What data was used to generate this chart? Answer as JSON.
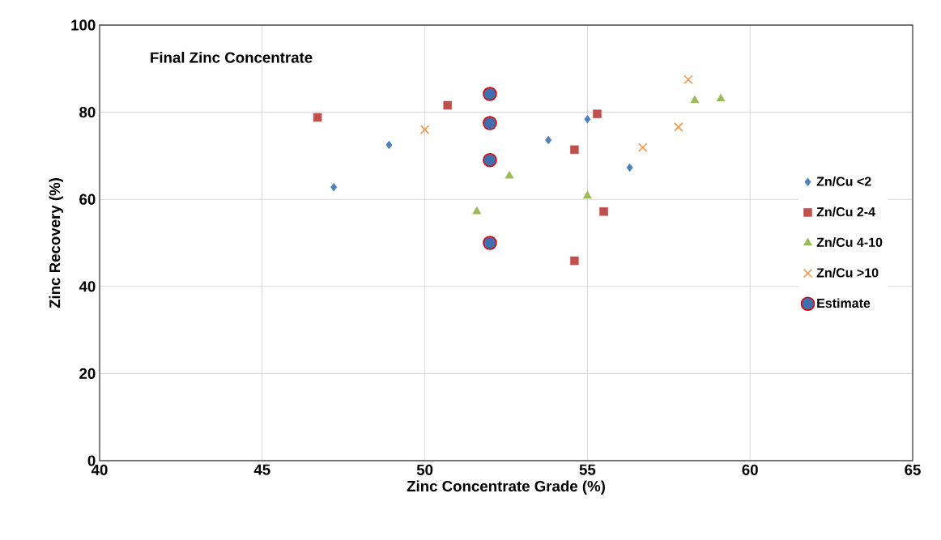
{
  "chart_data": {
    "type": "scatter",
    "title": "Final Zinc Concentrate",
    "xlabel": "Zinc Concentrate Grade (%)",
    "ylabel": "Zinc Recovery (%)",
    "xlim": [
      40,
      65
    ],
    "xticks": [
      40,
      45,
      50,
      55,
      60,
      65
    ],
    "ylim": [
      0,
      100
    ],
    "yticks": [
      0,
      20,
      40,
      60,
      80,
      100
    ],
    "grid": true,
    "legend": "right",
    "series": [
      {
        "name": "Zn/Cu <2",
        "color": "#4f81bd",
        "marker": "diamond",
        "x": [
          47.2,
          48.9,
          53.8,
          55.0,
          56.3
        ],
        "values": [
          62.8,
          72.5,
          73.6,
          78.4,
          67.3
        ]
      },
      {
        "name": "Zn/Cu 2-4",
        "color": "#c0504d",
        "marker": "square",
        "x": [
          46.7,
          50.7,
          54.6,
          55.3,
          55.5,
          54.6
        ],
        "values": [
          78.8,
          81.6,
          71.4,
          79.6,
          57.2,
          45.9
        ]
      },
      {
        "name": "Zn/Cu 4-10",
        "color": "#9bbb59",
        "marker": "triangle",
        "x": [
          51.6,
          52.6,
          55.0,
          58.3,
          59.1
        ],
        "values": [
          57.2,
          65.4,
          60.8,
          82.7,
          83.1
        ]
      },
      {
        "name": "Zn/Cu >10",
        "color": "#f79646",
        "marker": "cross",
        "x": [
          50.0,
          56.7,
          57.8,
          58.1
        ],
        "values": [
          76.0,
          71.9,
          76.6,
          87.5
        ]
      },
      {
        "name": "Estimate",
        "color": "#3f6fae",
        "marker": "circle",
        "x": [
          52,
          52,
          52,
          52
        ],
        "values": [
          84.2,
          77.5,
          69.0,
          50.0
        ]
      }
    ]
  }
}
